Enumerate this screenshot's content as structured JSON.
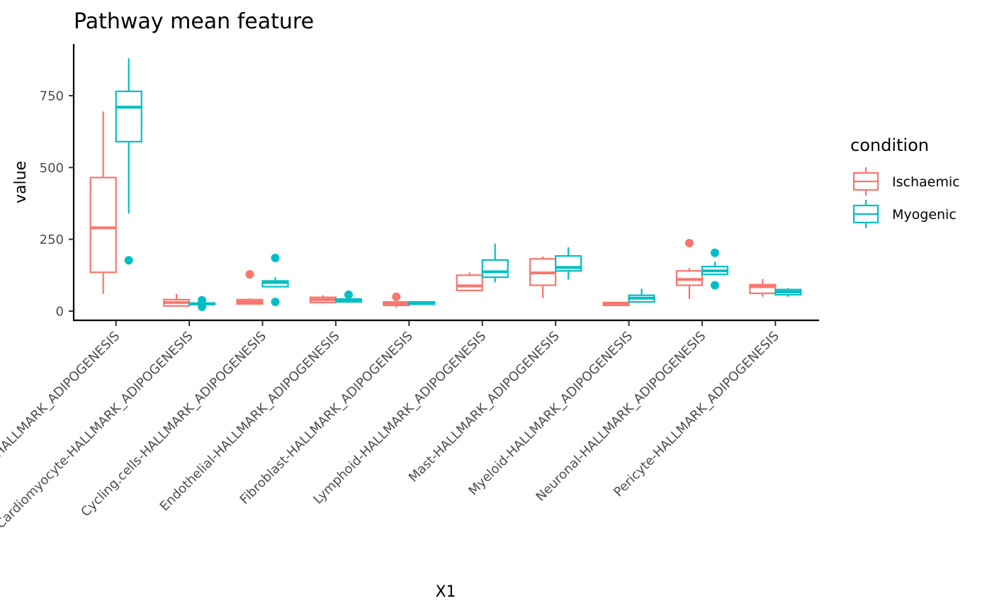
{
  "chart_data": {
    "type": "boxplot",
    "title": "Pathway mean feature",
    "xlabel": "X1",
    "ylabel": "value",
    "ylim": [
      -30,
      885
    ],
    "yticks": [
      0,
      250,
      500,
      750
    ],
    "grid": false,
    "legend": {
      "title": "condition",
      "placement": "right",
      "entries": [
        "Ischaemic",
        "Myogenic"
      ]
    },
    "colors": {
      "Ischaemic": "#F8766D",
      "Myogenic": "#00BFC4"
    },
    "categories": [
      "Adipocytes-HALLMARK_ADIPOGENESIS",
      "Cardiomyocyte-HALLMARK_ADIPOGENESIS",
      "Cycling.cells-HALLMARK_ADIPOGENESIS",
      "Endothelial-HALLMARK_ADIPOGENESIS",
      "Fibroblast-HALLMARK_ADIPOGENESIS",
      "Lymphoid-HALLMARK_ADIPOGENESIS",
      "Mast-HALLMARK_ADIPOGENESIS",
      "Myeloid-HALLMARK_ADIPOGENESIS",
      "Neuronal-HALLMARK_ADIPOGENESIS",
      "Pericyte-HALLMARK_ADIPOGENESIS"
    ],
    "series": [
      {
        "name": "Ischaemic",
        "boxes": [
          {
            "min": 60,
            "q1": 135,
            "median": 290,
            "q3": 465,
            "max": 695,
            "outliers": []
          },
          {
            "min": 15,
            "q1": 18,
            "median": 30,
            "q3": 40,
            "max": 60,
            "outliers": []
          },
          {
            "min": 22,
            "q1": 25,
            "median": 32,
            "q3": 40,
            "max": 45,
            "outliers": [
              128
            ]
          },
          {
            "min": 28,
            "q1": 30,
            "median": 40,
            "q3": 48,
            "max": 55,
            "outliers": []
          },
          {
            "min": 12,
            "q1": 20,
            "median": 25,
            "q3": 32,
            "max": 35,
            "outliers": [
              50
            ]
          },
          {
            "min": 68,
            "q1": 72,
            "median": 88,
            "q3": 125,
            "max": 135,
            "outliers": []
          },
          {
            "min": 45,
            "q1": 90,
            "median": 133,
            "q3": 182,
            "max": 190,
            "outliers": []
          },
          {
            "min": 18,
            "q1": 20,
            "median": 25,
            "q3": 30,
            "max": 32,
            "outliers": []
          },
          {
            "min": 42,
            "q1": 90,
            "median": 110,
            "q3": 140,
            "max": 150,
            "outliers": [
              237
            ]
          },
          {
            "min": 50,
            "q1": 62,
            "median": 85,
            "q3": 92,
            "max": 112,
            "outliers": []
          }
        ]
      },
      {
        "name": "Myogenic",
        "boxes": [
          {
            "min": 340,
            "q1": 590,
            "median": 710,
            "q3": 765,
            "max": 880,
            "outliers": [
              177
            ]
          },
          {
            "min": 22,
            "q1": 23,
            "median": 25,
            "q3": 28,
            "max": 30,
            "outliers": [
              15,
              38
            ]
          },
          {
            "min": 85,
            "q1": 85,
            "median": 100,
            "q3": 105,
            "max": 118,
            "outliers": [
              32,
              185
            ]
          },
          {
            "min": 30,
            "q1": 32,
            "median": 38,
            "q3": 42,
            "max": 45,
            "outliers": [
              57
            ]
          },
          {
            "min": 22,
            "q1": 24,
            "median": 28,
            "q3": 32,
            "max": 33,
            "outliers": []
          },
          {
            "min": 100,
            "q1": 118,
            "median": 137,
            "q3": 178,
            "max": 235,
            "outliers": []
          },
          {
            "min": 110,
            "q1": 140,
            "median": 152,
            "q3": 192,
            "max": 222,
            "outliers": []
          },
          {
            "min": 30,
            "q1": 32,
            "median": 45,
            "q3": 55,
            "max": 78,
            "outliers": []
          },
          {
            "min": 125,
            "q1": 128,
            "median": 140,
            "q3": 155,
            "max": 172,
            "outliers": [
              90,
              203
            ]
          },
          {
            "min": 50,
            "q1": 57,
            "median": 67,
            "q3": 75,
            "max": 80,
            "outliers": []
          }
        ]
      }
    ]
  }
}
